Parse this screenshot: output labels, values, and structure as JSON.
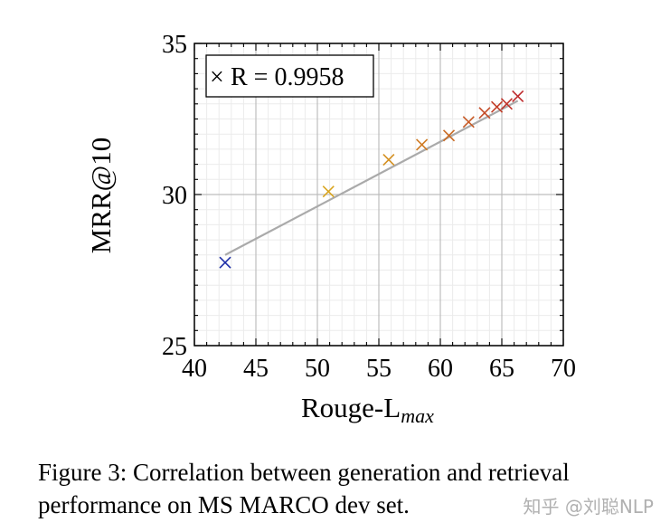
{
  "chart_data": {
    "type": "scatter",
    "xlabel": "Rouge-L",
    "xlabel_subscript": "max",
    "ylabel": "MRR@10",
    "xlim": [
      40,
      70
    ],
    "ylim": [
      25,
      35
    ],
    "xticks": [
      40,
      45,
      50,
      55,
      60,
      65,
      70
    ],
    "yticks": [
      25,
      30,
      35
    ],
    "grid": true,
    "legend_text": "R = 0.9958",
    "legend_marker": "×",
    "legend_position": "top-left",
    "points": [
      {
        "x": 42.5,
        "y": 27.75,
        "color": "#1f2fa8"
      },
      {
        "x": 50.9,
        "y": 30.1,
        "color": "#d9a520"
      },
      {
        "x": 55.8,
        "y": 31.15,
        "color": "#d49020"
      },
      {
        "x": 58.5,
        "y": 31.65,
        "color": "#cf7a22"
      },
      {
        "x": 60.7,
        "y": 31.95,
        "color": "#c96a23"
      },
      {
        "x": 62.3,
        "y": 32.4,
        "color": "#c75a25"
      },
      {
        "x": 63.6,
        "y": 32.7,
        "color": "#c44b27"
      },
      {
        "x": 64.6,
        "y": 32.9,
        "color": "#c23e29"
      },
      {
        "x": 65.4,
        "y": 33.0,
        "color": "#c0342b"
      },
      {
        "x": 66.3,
        "y": 33.25,
        "color": "#be2a2c"
      }
    ],
    "fit_line": {
      "x": [
        42.5,
        66.3
      ],
      "y": [
        28.0,
        33.1
      ],
      "color": "#aaaaaa"
    }
  },
  "caption": {
    "line1": "Figure 3: Correlation between generation and retrieval",
    "line2": "performance on MS MARCO dev set."
  },
  "watermark": "知乎 @刘聪NLP"
}
